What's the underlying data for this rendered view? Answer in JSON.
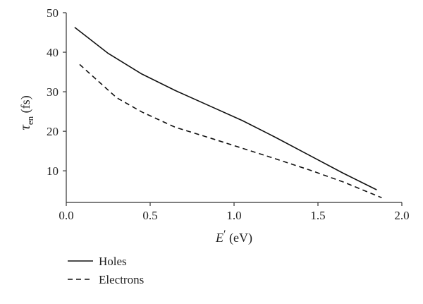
{
  "chart_data": {
    "type": "line",
    "xlabel": {
      "symbol": "E",
      "prime": "′",
      "unit": " (eV)"
    },
    "ylabel": {
      "symbol": "τ",
      "subscript": "en",
      "unit": " (fs)"
    },
    "xlim": [
      0.0,
      2.0
    ],
    "ylim": [
      2,
      50
    ],
    "xticks": [
      0.0,
      0.5,
      1.0,
      1.5,
      2.0
    ],
    "xtick_labels": [
      "0.0",
      "0.5",
      "1.0",
      "1.5",
      "2.0"
    ],
    "yticks": [
      10,
      20,
      30,
      40,
      50
    ],
    "ytick_labels": [
      "10",
      "20",
      "30",
      "40",
      "50"
    ],
    "grid": false,
    "legend_position": "bottom-left, below plot",
    "series": [
      {
        "name": "Holes",
        "line_style": "solid",
        "color": "#111111",
        "x": [
          0.05,
          0.25,
          0.45,
          0.65,
          0.85,
          1.05,
          1.25,
          1.45,
          1.65,
          1.85
        ],
        "y": [
          46.3,
          39.7,
          34.5,
          30.3,
          26.5,
          22.7,
          18.4,
          13.9,
          9.4,
          5.2
        ]
      },
      {
        "name": "Electrons",
        "line_style": "dashed",
        "color": "#111111",
        "x": [
          0.08,
          0.3,
          0.45,
          0.65,
          0.85,
          1.05,
          1.25,
          1.45,
          1.65,
          1.88
        ],
        "y": [
          36.9,
          28.5,
          24.9,
          21.0,
          18.4,
          15.7,
          13.0,
          10.2,
          7.2,
          3.2
        ]
      }
    ]
  }
}
